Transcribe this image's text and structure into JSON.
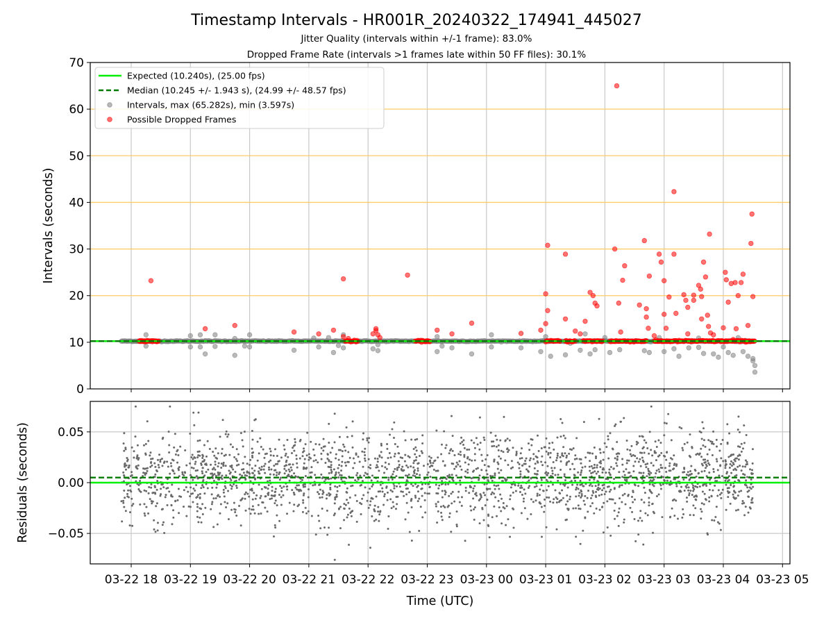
{
  "figure": {
    "title": "Timestamp Intervals - HR001R_20240322_174941_445027",
    "subtitle1": "Jitter Quality (intervals within +/-1 frame): 83.0%",
    "subtitle2": "Dropped Frame Rate (intervals >1 frames late within 50 FF files): 30.1%",
    "xlabel": "Time (UTC)",
    "x_ticks": [
      "03-22 18",
      "03-22 19",
      "03-22 20",
      "03-22 21",
      "03-22 22",
      "03-22 23",
      "03-23 00",
      "03-23 01",
      "03-23 02",
      "03-23 03",
      "03-23 04",
      "03-23 05"
    ]
  },
  "colors": {
    "expected": "#00ee00",
    "median": "#007a00",
    "intervals": "#808080",
    "dropped": "#ff0000",
    "threshold_lines": "#ffcc66",
    "grid": "#c8c8c8",
    "residuals": "#696969"
  },
  "chart_data": [
    {
      "type": "scatter",
      "ylabel": "Intervals (seconds)",
      "ylim": [
        0,
        70
      ],
      "y_ticks": [
        "0",
        "10",
        "20",
        "30",
        "40",
        "50",
        "60",
        "70"
      ],
      "x_range": [
        "2024-03-22 17:20",
        "2024-03-23 05:05"
      ],
      "legend_position": "top-left",
      "grid": true,
      "reference_lines": [
        {
          "name": "Expected (10.240s), (25.00 fps)",
          "value": 10.24,
          "style": "solid"
        },
        {
          "name": "Median (10.245 +/- 1.943 s), (24.99 +/- 48.57 fps)",
          "value": 10.245,
          "style": "dashed"
        }
      ],
      "horizontal_threshold_lines": [
        20,
        30,
        40,
        50,
        60
      ],
      "series": [
        {
          "name": "Intervals, max (65.282s), min (3.597s)",
          "baseline": 10.24,
          "points": [
            [
              "03-22 18:15",
              11.6
            ],
            [
              "03-22 18:15",
              9.2
            ],
            [
              "03-22 19:00",
              9.0
            ],
            [
              "03-22 19:00",
              11.4
            ],
            [
              "03-22 19:10",
              11.6
            ],
            [
              "03-22 19:15",
              7.5
            ],
            [
              "03-22 19:10",
              9.0
            ],
            [
              "03-22 19:25",
              11.6
            ],
            [
              "03-22 19:25",
              9.1
            ],
            [
              "03-22 19:45",
              7.2
            ],
            [
              "03-22 19:45",
              10.8
            ],
            [
              "03-22 19:55",
              9.2
            ],
            [
              "03-22 20:00",
              11.6
            ],
            [
              "03-22 20:00",
              9.0
            ],
            [
              "03-22 20:45",
              8.3
            ],
            [
              "03-22 21:05",
              10.9
            ],
            [
              "03-22 21:10",
              9.0
            ],
            [
              "03-22 21:25",
              7.8
            ],
            [
              "03-22 21:20",
              11.0
            ],
            [
              "03-22 21:30",
              9.3
            ],
            [
              "03-22 21:35",
              8.8
            ],
            [
              "03-22 21:35",
              11.6
            ],
            [
              "03-22 22:05",
              8.6
            ],
            [
              "03-22 22:10",
              8.2
            ],
            [
              "03-22 22:10",
              9.5
            ],
            [
              "03-22 23:10",
              8.0
            ],
            [
              "03-22 23:10",
              11.2
            ],
            [
              "03-22 23:15",
              9.2
            ],
            [
              "03-22 23:25",
              8.8
            ],
            [
              "03-22 23:45",
              7.5
            ],
            [
              "03-23 00:05",
              11.6
            ],
            [
              "03-23 00:05",
              9.0
            ],
            [
              "03-23 00:35",
              8.8
            ],
            [
              "03-23 00:55",
              8.0
            ],
            [
              "03-23 01:00",
              11.2
            ],
            [
              "03-23 01:05",
              7.0
            ],
            [
              "03-23 01:20",
              7.3
            ],
            [
              "03-23 01:25",
              9.8
            ],
            [
              "03-23 01:35",
              8.3
            ],
            [
              "03-23 01:40",
              11.8
            ],
            [
              "03-23 01:45",
              7.5
            ],
            [
              "03-23 01:50",
              8.4
            ],
            [
              "03-23 02:00",
              11.0
            ],
            [
              "03-23 02:05",
              7.8
            ],
            [
              "03-23 02:15",
              8.4
            ],
            [
              "03-23 02:40",
              8.2
            ],
            [
              "03-23 02:45",
              7.8
            ],
            [
              "03-23 02:55",
              11.0
            ],
            [
              "03-23 03:00",
              8.0
            ],
            [
              "03-23 03:10",
              8.6
            ],
            [
              "03-23 03:15",
              7.0
            ],
            [
              "03-23 03:25",
              8.8
            ],
            [
              "03-23 03:35",
              10.9
            ],
            [
              "03-23 03:35",
              8.9
            ],
            [
              "03-23 03:40",
              7.6
            ],
            [
              "03-23 03:50",
              7.5
            ],
            [
              "03-23 03:55",
              6.8
            ],
            [
              "03-23 04:00",
              9.0
            ],
            [
              "03-23 04:05",
              7.8
            ],
            [
              "03-23 04:10",
              7.2
            ],
            [
              "03-23 04:15",
              11.0
            ],
            [
              "03-23 04:20",
              8.0
            ],
            [
              "03-23 04:25",
              7.0
            ],
            [
              "03-23 04:30",
              6.5
            ],
            [
              "03-23 04:30",
              6.0
            ],
            [
              "03-23 04:32",
              5.0
            ],
            [
              "03-23 04:32",
              3.6
            ]
          ]
        },
        {
          "name": "Possible Dropped Frames",
          "baseline": 10.24,
          "dense_segments": [
            [
              "03-22 18:08",
              "03-22 18:28"
            ],
            [
              "03-22 21:37",
              "03-22 21:50"
            ],
            [
              "03-22 22:48",
              "03-22 23:03"
            ],
            [
              "03-23 01:00",
              "03-23 01:15"
            ],
            [
              "03-23 01:20",
              "03-23 01:30"
            ],
            [
              "03-23 01:38",
              "03-23 01:58"
            ],
            [
              "03-23 02:05",
              "03-23 02:42"
            ],
            [
              "03-23 02:50",
              "03-23 04:32"
            ]
          ],
          "points": [
            [
              "03-22 18:20",
              23.2
            ],
            [
              "03-22 19:15",
              12.9
            ],
            [
              "03-22 19:45",
              13.6
            ],
            [
              "03-22 20:45",
              12.2
            ],
            [
              "03-22 21:10",
              11.8
            ],
            [
              "03-22 21:25",
              12.6
            ],
            [
              "03-22 21:35",
              23.6
            ],
            [
              "03-22 21:35",
              11.2
            ],
            [
              "03-22 21:40",
              10.8
            ],
            [
              "03-22 22:05",
              11.8
            ],
            [
              "03-22 22:08",
              12.9
            ],
            [
              "03-22 22:08",
              12.5
            ],
            [
              "03-22 22:10",
              11.6
            ],
            [
              "03-22 22:12",
              11.0
            ],
            [
              "03-22 22:40",
              24.4
            ],
            [
              "03-22 23:10",
              12.6
            ],
            [
              "03-22 23:25",
              11.8
            ],
            [
              "03-22 23:45",
              14.1
            ],
            [
              "03-23 00:35",
              11.9
            ],
            [
              "03-23 00:55",
              12.6
            ],
            [
              "03-23 01:00",
              20.4
            ],
            [
              "03-23 01:00",
              14.0
            ],
            [
              "03-23 01:02",
              30.8
            ],
            [
              "03-23 01:02",
              16.8
            ],
            [
              "03-23 01:20",
              28.9
            ],
            [
              "03-23 01:20",
              15.0
            ],
            [
              "03-23 01:30",
              12.4
            ],
            [
              "03-23 01:35",
              11.8
            ],
            [
              "03-23 01:40",
              14.5
            ],
            [
              "03-23 01:45",
              20.7
            ],
            [
              "03-23 01:48",
              20.0
            ],
            [
              "03-23 01:50",
              18.4
            ],
            [
              "03-23 01:52",
              17.8
            ],
            [
              "03-23 02:10",
              30.0
            ],
            [
              "03-23 02:12",
              65.0
            ],
            [
              "03-23 02:14",
              18.4
            ],
            [
              "03-23 02:16",
              12.2
            ],
            [
              "03-23 02:18",
              23.3
            ],
            [
              "03-23 02:20",
              26.4
            ],
            [
              "03-23 02:35",
              18.0
            ],
            [
              "03-23 02:40",
              31.8
            ],
            [
              "03-23 02:42",
              17.2
            ],
            [
              "03-23 02:42",
              15.4
            ],
            [
              "03-23 02:44",
              13.0
            ],
            [
              "03-23 02:45",
              24.2
            ],
            [
              "03-23 02:50",
              11.4
            ],
            [
              "03-23 02:55",
              28.9
            ],
            [
              "03-23 02:57",
              27.2
            ],
            [
              "03-23 03:00",
              23.2
            ],
            [
              "03-23 03:00",
              16.0
            ],
            [
              "03-23 03:02",
              13.0
            ],
            [
              "03-23 03:05",
              19.7
            ],
            [
              "03-23 03:10",
              42.3
            ],
            [
              "03-23 03:10",
              28.9
            ],
            [
              "03-23 03:12",
              16.2
            ],
            [
              "03-23 03:20",
              20.2
            ],
            [
              "03-23 03:22",
              19.0
            ],
            [
              "03-23 03:24",
              17.5
            ],
            [
              "03-23 03:24",
              11.8
            ],
            [
              "03-23 03:30",
              20.1
            ],
            [
              "03-23 03:30",
              19.0
            ],
            [
              "03-23 03:35",
              22.2
            ],
            [
              "03-23 03:37",
              21.4
            ],
            [
              "03-23 03:38",
              19.8
            ],
            [
              "03-23 03:38",
              15.0
            ],
            [
              "03-23 03:40",
              27.2
            ],
            [
              "03-23 03:42",
              24.0
            ],
            [
              "03-23 03:44",
              15.8
            ],
            [
              "03-23 03:45",
              13.4
            ],
            [
              "03-23 03:46",
              33.2
            ],
            [
              "03-23 03:47",
              12.0
            ],
            [
              "03-23 03:50",
              11.6
            ],
            [
              "03-23 04:00",
              13.1
            ],
            [
              "03-23 04:02",
              25.0
            ],
            [
              "03-23 04:03",
              23.4
            ],
            [
              "03-23 04:05",
              18.6
            ],
            [
              "03-23 04:08",
              22.6
            ],
            [
              "03-23 04:10",
              10.6
            ],
            [
              "03-23 04:12",
              22.8
            ],
            [
              "03-23 04:13",
              12.9
            ],
            [
              "03-23 04:15",
              20.0
            ],
            [
              "03-23 04:18",
              22.8
            ],
            [
              "03-23 04:20",
              24.6
            ],
            [
              "03-23 04:25",
              13.6
            ],
            [
              "03-23 04:28",
              31.2
            ],
            [
              "03-23 04:29",
              37.5
            ],
            [
              "03-23 04:30",
              19.8
            ]
          ]
        }
      ]
    },
    {
      "type": "scatter",
      "ylabel": "Residuals (seconds)",
      "ylim": [
        -0.08,
        0.08
      ],
      "y_ticks": [
        "−0.05",
        "0.00",
        "0.05"
      ],
      "x_range": [
        "2024-03-22 17:20",
        "2024-03-23 05:05"
      ],
      "grid": true,
      "reference_lines": [
        {
          "name": "Expected",
          "value": 0.0,
          "style": "solid"
        },
        {
          "name": "Median",
          "value": 0.005,
          "style": "dashed"
        }
      ],
      "series": [
        {
          "name": "Residuals",
          "x_start": "03-22 17:50",
          "x_end": "03-23 04:30",
          "count": 2400,
          "center": 0.005,
          "spread": 0.022,
          "min": -0.076,
          "max": 0.075
        }
      ]
    }
  ]
}
